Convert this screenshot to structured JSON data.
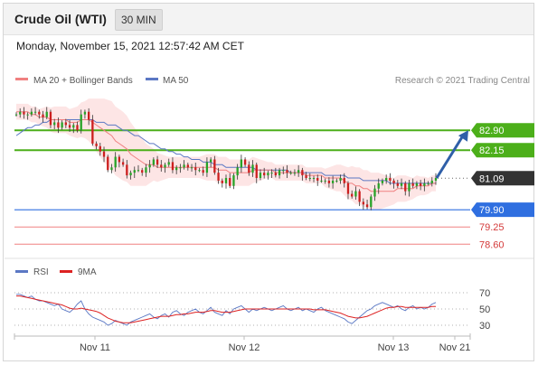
{
  "header": {
    "title": "Crude Oil (WTI)",
    "timeframe": "30 MIN",
    "datetime": "Monday, November 15, 2021 12:57:42 AM CET"
  },
  "legend": {
    "ma20": "MA 20 + Bollinger Bands",
    "ma50": "MA 50",
    "credit": "Research © 2021 Trading Central",
    "rsi": "RSI",
    "ma9": "9MA"
  },
  "colors": {
    "candle_up": "#27a327",
    "candle_down": "#cc1f1f",
    "bollinger_fill": "#fde0e0",
    "ma20": "#f08080",
    "ma50": "#5b78c4",
    "resistance": "#4caf1a",
    "pivot": "#333333",
    "support": "#2f6fe0",
    "support_light": "#f08080",
    "arrow": "#2f5fa8",
    "rsi": "#5b78c4",
    "rsi_ma": "#dd2222"
  },
  "chart_data": {
    "type": "line",
    "ylim": [
      78.2,
      84.0
    ],
    "x_ticks": [
      "Nov 11",
      "Nov 12",
      "Nov 13",
      "Nov 21"
    ],
    "price_levels": [
      {
        "value": 82.9,
        "label": "82.90",
        "kind": "resistance"
      },
      {
        "value": 82.15,
        "label": "82.15",
        "kind": "resistance"
      },
      {
        "value": 81.09,
        "label": "81.09",
        "kind": "pivot"
      },
      {
        "value": 79.9,
        "label": "79.90",
        "kind": "support"
      },
      {
        "value": 79.25,
        "label": "79.25",
        "kind": "support-light"
      },
      {
        "value": 78.6,
        "label": "78.60",
        "kind": "support-light"
      }
    ],
    "close": [
      83.5,
      83.6,
      83.5,
      83.5,
      83.6,
      83.6,
      83.5,
      83.4,
      83.6,
      83.1,
      83.2,
      83.0,
      83.2,
      83.1,
      83.0,
      83.1,
      82.9,
      83.5,
      83.6,
      83.3,
      82.4,
      82.3,
      82.1,
      81.9,
      81.4,
      81.5,
      81.9,
      81.7,
      81.6,
      81.2,
      81.3,
      81.4,
      81.4,
      81.3,
      81.5,
      81.6,
      81.8,
      81.6,
      81.5,
      81.6,
      81.7,
      81.4,
      81.5,
      81.5,
      81.6,
      81.5,
      81.5,
      81.4,
      81.4,
      81.3,
      81.7,
      81.8,
      81.3,
      81.0,
      80.9,
      81.1,
      80.8,
      81.2,
      81.5,
      81.8,
      81.6,
      81.3,
      81.6,
      81.1,
      81.3,
      81.2,
      81.3,
      81.3,
      81.2,
      81.4,
      81.4,
      81.3,
      81.3,
      81.3,
      81.4,
      81.2,
      81.1,
      81.1,
      81.1,
      81.0,
      81.0,
      81.0,
      80.9,
      81.0,
      81.0,
      81.1,
      80.9,
      80.5,
      80.4,
      80.6,
      80.2,
      80.1,
      80.0,
      80.4,
      80.7,
      80.9,
      81.0,
      81.1,
      81.0,
      80.9,
      80.8,
      80.9,
      80.6,
      80.9,
      80.8,
      80.9,
      80.8,
      80.9,
      80.9,
      81.0,
      81.1
    ],
    "ma20": [
      83.6,
      83.6,
      83.6,
      83.6,
      83.5,
      83.5,
      83.4,
      83.4,
      83.4,
      83.3,
      83.3,
      83.3,
      83.3,
      83.3,
      83.2,
      83.2,
      83.2,
      83.3,
      83.3,
      83.3,
      83.2,
      83.1,
      83.0,
      82.9,
      82.8,
      82.7,
      82.5,
      82.4,
      82.3,
      82.2,
      82.0,
      81.9,
      81.8,
      81.7,
      81.6,
      81.6,
      81.6,
      81.5,
      81.5,
      81.5,
      81.5,
      81.5,
      81.5,
      81.5,
      81.5,
      81.5,
      81.5,
      81.5,
      81.5,
      81.5,
      81.5,
      81.5,
      81.5,
      81.4,
      81.4,
      81.4,
      81.3,
      81.3,
      81.3,
      81.3,
      81.3,
      81.3,
      81.4,
      81.4,
      81.4,
      81.4,
      81.4,
      81.4,
      81.3,
      81.3,
      81.3,
      81.3,
      81.3,
      81.3,
      81.3,
      81.3,
      81.2,
      81.2,
      81.2,
      81.2,
      81.2,
      81.1,
      81.1,
      81.1,
      81.1,
      81.1,
      81.0,
      80.9,
      80.9,
      80.8,
      80.8,
      80.7,
      80.7,
      80.6,
      80.6,
      80.6,
      80.6,
      80.6,
      80.6,
      80.6,
      80.7,
      80.7,
      80.7,
      80.7,
      80.7,
      80.8,
      80.8,
      80.8,
      80.8,
      80.9,
      80.9
    ],
    "ma50": [
      82.7,
      82.8,
      82.9,
      83.0,
      83.0,
      83.1,
      83.1,
      83.2,
      83.2,
      83.3,
      83.3,
      83.3,
      83.3,
      83.3,
      83.3,
      83.3,
      83.3,
      83.3,
      83.3,
      83.3,
      83.3,
      83.2,
      83.2,
      83.2,
      83.1,
      83.1,
      83.1,
      83.0,
      82.9,
      82.9,
      82.8,
      82.7,
      82.7,
      82.6,
      82.5,
      82.4,
      82.4,
      82.3,
      82.2,
      82.2,
      82.1,
      82.1,
      82.0,
      82.0,
      81.9,
      81.9,
      81.8,
      81.8,
      81.8,
      81.7,
      81.7,
      81.7,
      81.6,
      81.6,
      81.6,
      81.5,
      81.5,
      81.5,
      81.5,
      81.5,
      81.5,
      81.5,
      81.5,
      81.4,
      81.4,
      81.4,
      81.4,
      81.4,
      81.4,
      81.4,
      81.4,
      81.4,
      81.3,
      81.3,
      81.3,
      81.3,
      81.3,
      81.3,
      81.3,
      81.3,
      81.3,
      81.2,
      81.2,
      81.2,
      81.2,
      81.2,
      81.2,
      81.1,
      81.1,
      81.1,
      81.1,
      81.0,
      81.0,
      81.0,
      81.0,
      81.0,
      81.0,
      81.0,
      80.9,
      80.9,
      80.9,
      80.9,
      80.9,
      80.9,
      80.9,
      80.9,
      80.9,
      80.9,
      80.9,
      80.9,
      80.9
    ],
    "bb_width": [
      0.3,
      0.3,
      0.3,
      0.3,
      0.3,
      0.3,
      0.3,
      0.35,
      0.4,
      0.45,
      0.5,
      0.5,
      0.5,
      0.5,
      0.5,
      0.55,
      0.6,
      0.65,
      0.7,
      0.8,
      0.9,
      1.0,
      1.1,
      1.2,
      1.25,
      1.3,
      1.3,
      1.3,
      1.3,
      1.25,
      1.2,
      1.1,
      1.0,
      0.9,
      0.8,
      0.7,
      0.6,
      0.55,
      0.5,
      0.45,
      0.4,
      0.4,
      0.4,
      0.4,
      0.4,
      0.4,
      0.4,
      0.4,
      0.4,
      0.45,
      0.5,
      0.5,
      0.5,
      0.5,
      0.5,
      0.5,
      0.5,
      0.5,
      0.5,
      0.5,
      0.5,
      0.5,
      0.5,
      0.45,
      0.4,
      0.35,
      0.3,
      0.3,
      0.3,
      0.3,
      0.3,
      0.3,
      0.3,
      0.3,
      0.3,
      0.3,
      0.3,
      0.3,
      0.3,
      0.3,
      0.3,
      0.35,
      0.4,
      0.45,
      0.5,
      0.5,
      0.55,
      0.6,
      0.65,
      0.7,
      0.7,
      0.7,
      0.7,
      0.7,
      0.7,
      0.7,
      0.65,
      0.6,
      0.55,
      0.5,
      0.5,
      0.5,
      0.5,
      0.45,
      0.4,
      0.4,
      0.35,
      0.35,
      0.3,
      0.3,
      0.3
    ],
    "projection": {
      "from": 81.1,
      "to": 82.9
    },
    "rsi_panel": {
      "ticks": [
        70,
        50,
        30
      ],
      "ylim": [
        20,
        80
      ],
      "rsi": [
        68,
        68,
        66,
        64,
        66,
        62,
        60,
        60,
        58,
        56,
        54,
        56,
        50,
        48,
        46,
        50,
        56,
        60,
        50,
        44,
        40,
        38,
        36,
        34,
        30,
        32,
        36,
        34,
        32,
        30,
        34,
        36,
        38,
        40,
        42,
        44,
        40,
        38,
        42,
        44,
        40,
        46,
        48,
        44,
        42,
        46,
        48,
        50,
        46,
        44,
        48,
        52,
        46,
        44,
        42,
        48,
        44,
        50,
        52,
        54,
        50,
        46,
        50,
        48,
        50,
        52,
        50,
        48,
        50,
        52,
        54,
        50,
        48,
        50,
        52,
        48,
        50,
        48,
        46,
        50,
        52,
        48,
        46,
        44,
        42,
        40,
        38,
        34,
        32,
        36,
        40,
        44,
        48,
        50,
        54,
        56,
        58,
        56,
        54,
        52,
        54,
        50,
        48,
        52,
        54,
        50,
        52,
        50,
        52,
        56,
        58
      ],
      "ma9": [
        66,
        66,
        65,
        64,
        63,
        62,
        61,
        60,
        59,
        58,
        57,
        56,
        55,
        53,
        51,
        50,
        50,
        51,
        50,
        49,
        48,
        47,
        45,
        42,
        39,
        37,
        35,
        34,
        33,
        33,
        33,
        34,
        35,
        36,
        37,
        38,
        39,
        40,
        41,
        41,
        41,
        42,
        43,
        43,
        44,
        44,
        45,
        46,
        46,
        46,
        47,
        48,
        48,
        47,
        46,
        46,
        46,
        47,
        48,
        49,
        50,
        50,
        50,
        50,
        50,
        50,
        50,
        50,
        50,
        50,
        50,
        50,
        50,
        50,
        50,
        50,
        50,
        50,
        49,
        49,
        49,
        49,
        48,
        47,
        46,
        45,
        43,
        41,
        40,
        39,
        39,
        40,
        41,
        43,
        45,
        47,
        49,
        51,
        52,
        52,
        53,
        53,
        52,
        52,
        52,
        52,
        52,
        52,
        52,
        53,
        53
      ]
    }
  }
}
